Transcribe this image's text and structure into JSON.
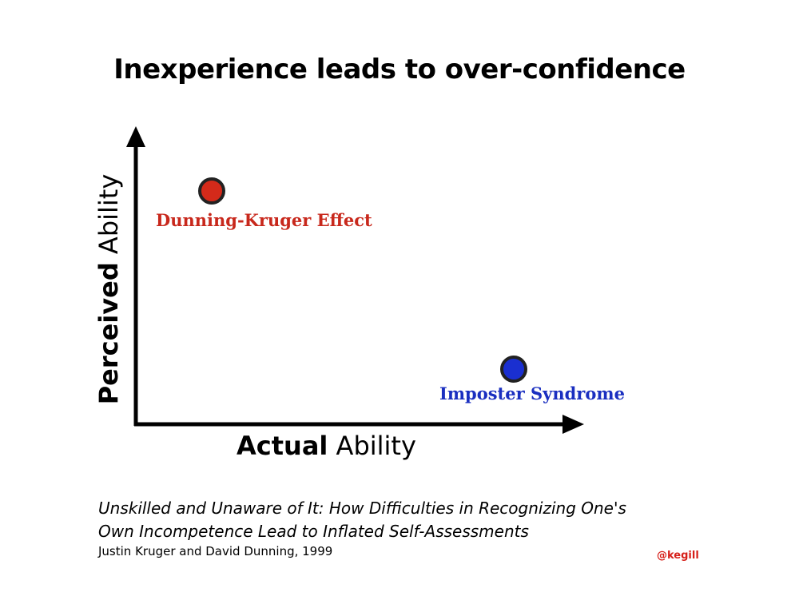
{
  "title": "Inexperience leads to over-confidence",
  "axes": {
    "y_label_bold": "Perceived",
    "y_label_rest": " Ability",
    "x_label_bold": "Actual",
    "x_label_rest": " Ability"
  },
  "points": [
    {
      "label": "Dunning-Kruger Effect",
      "color": "#d42a1a"
    },
    {
      "label": "Imposter Syndrome",
      "color": "#1a2fd0"
    }
  ],
  "citation": {
    "title_line1": "Unskilled and Unaware of It: How Difficulties in Recognizing One's",
    "title_line2": "Own Incompetence Lead to Inflated Self-Assessments",
    "authors": "Justin Kruger and David Dunning, 1999"
  },
  "handle": "@kegill"
}
